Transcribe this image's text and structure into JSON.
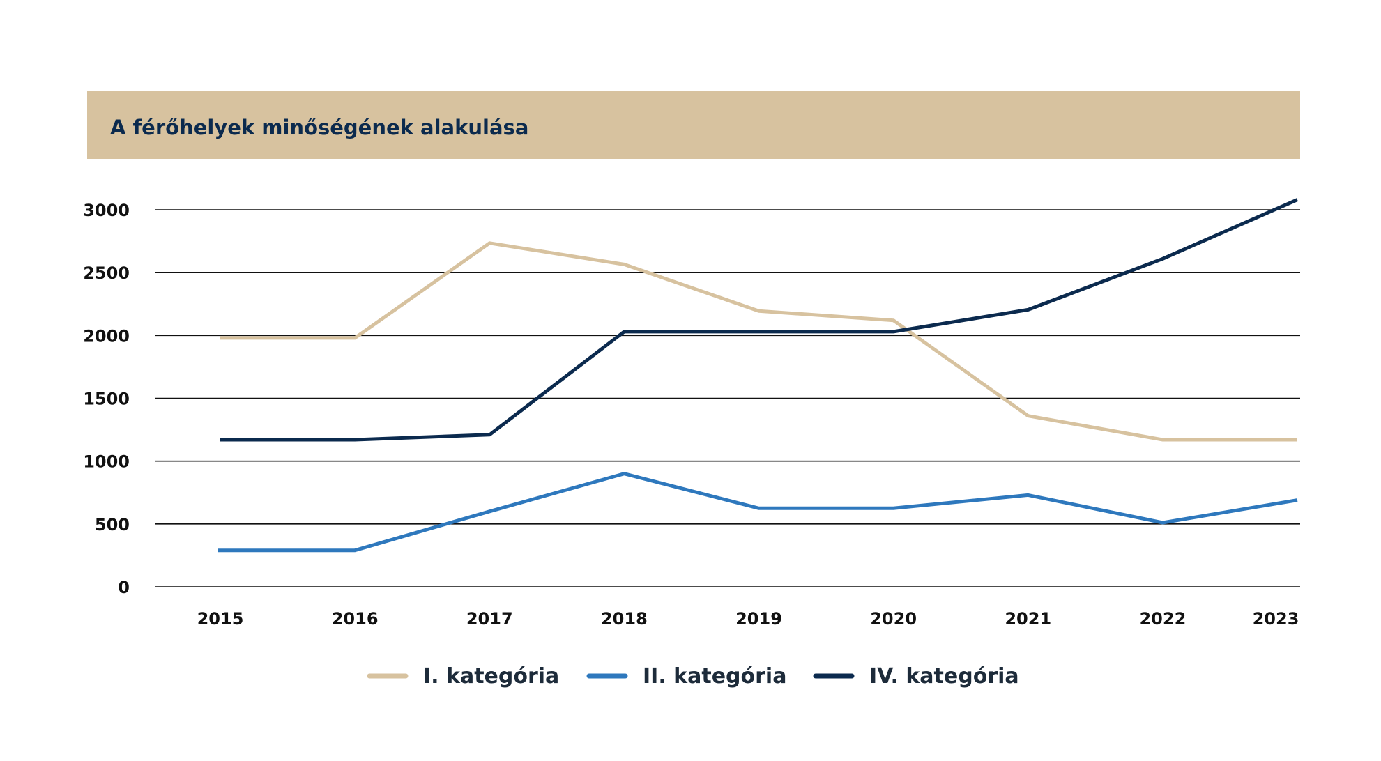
{
  "title": "A férőhelyek minőségének alakulása",
  "colors": {
    "title_band": "#d7c29f",
    "title_text": "#0b2a4e",
    "grid": "#111111"
  },
  "chart_data": {
    "type": "line",
    "title": "A férőhelyek minőségének alakulása",
    "xlabel": "",
    "ylabel": "",
    "categories": [
      "2015",
      "2016",
      "2017",
      "2018",
      "2019",
      "2020",
      "2021",
      "2022",
      "2023"
    ],
    "ylim": [
      0,
      3000
    ],
    "yticks": [
      0,
      500,
      1000,
      1500,
      2000,
      2500,
      3000
    ],
    "grid": true,
    "legend_position": "bottom",
    "series": [
      {
        "name": "I. kategória",
        "color": "#d7c29f",
        "values": [
          1980,
          1980,
          2735,
          2565,
          2195,
          2120,
          1360,
          1170,
          1170
        ]
      },
      {
        "name": "II. kategória",
        "color": "#2e78bd",
        "values": [
          290,
          290,
          600,
          900,
          625,
          625,
          730,
          510,
          690
        ]
      },
      {
        "name": "IV. kategória",
        "color": "#0b2a4e",
        "values": [
          1170,
          1170,
          1210,
          2030,
          2030,
          2030,
          2205,
          2610,
          3080
        ]
      }
    ]
  }
}
